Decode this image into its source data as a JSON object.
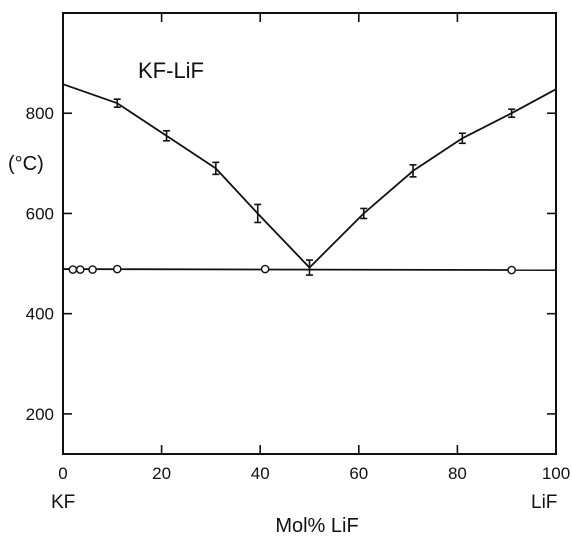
{
  "chart_data": {
    "type": "line",
    "title": "KF-LiF",
    "xlabel": "Mol% LiF",
    "ylabel": "(°C)",
    "xlim": [
      0,
      100
    ],
    "ylim": [
      120,
      1000
    ],
    "x_ticks": [
      0,
      20,
      40,
      60,
      80,
      100
    ],
    "x_tick_labels": [
      "0",
      "20",
      "40",
      "60",
      "80",
      "100"
    ],
    "y_ticks": [
      200,
      400,
      600,
      800
    ],
    "y_tick_labels": [
      "200",
      "400",
      "600",
      "800"
    ],
    "x_end_labels": {
      "left": "KF",
      "right": "LiF"
    },
    "grid": false,
    "legend": "none",
    "series": [
      {
        "kind": "liquidus-curve-kf-side",
        "marker": "errorbar",
        "points": [
          [
            0,
            858
          ],
          [
            11,
            820
          ],
          [
            21,
            755
          ],
          [
            31,
            690
          ],
          [
            39.5,
            600
          ],
          [
            50,
            492
          ]
        ],
        "errors": [
          0,
          8,
          10,
          12,
          18,
          15
        ]
      },
      {
        "kind": "liquidus-curve-lif-side",
        "marker": "errorbar",
        "points": [
          [
            50,
            492
          ],
          [
            61,
            600
          ],
          [
            71,
            685
          ],
          [
            81,
            750
          ],
          [
            91,
            800
          ],
          [
            100,
            848
          ]
        ],
        "errors": [
          0,
          10,
          12,
          10,
          8,
          0
        ]
      },
      {
        "kind": "eutectic-line",
        "marker": "open-circle",
        "points": [
          [
            2,
            488
          ],
          [
            3.5,
            488
          ],
          [
            6,
            488
          ],
          [
            11,
            489
          ],
          [
            41,
            489
          ],
          [
            91,
            487
          ]
        ],
        "line": [
          [
            0,
            489
          ],
          [
            100,
            487
          ]
        ]
      }
    ]
  }
}
